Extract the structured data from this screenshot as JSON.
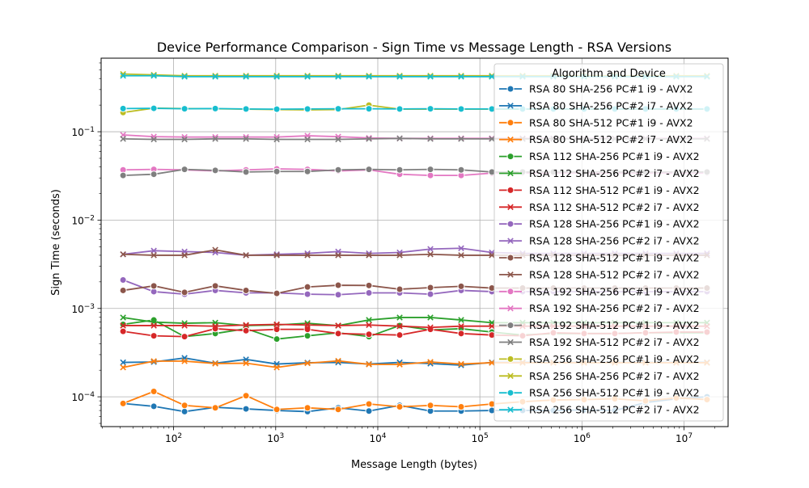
{
  "chart_data": {
    "type": "line",
    "title": "Device Performance Comparison - Sign Time vs Message Length - RSA Versions",
    "xlabel": "Message Length (bytes)",
    "ylabel": "Sign Time (seconds)",
    "xscale": "log",
    "yscale": "log",
    "xlim": [
      19.5,
      27000000
    ],
    "ylim": [
      4.6e-05,
      0.68
    ],
    "grid": true,
    "legend": {
      "title": "Algorithm and Device",
      "placement": "upper right"
    },
    "x_ticks": [
      {
        "value": 100,
        "base": "10",
        "exp": "2"
      },
      {
        "value": 1000,
        "base": "10",
        "exp": "3"
      },
      {
        "value": 10000,
        "base": "10",
        "exp": "4"
      },
      {
        "value": 100000,
        "base": "10",
        "exp": "5"
      },
      {
        "value": 1000000,
        "base": "10",
        "exp": "6"
      },
      {
        "value": 10000000,
        "base": "10",
        "exp": "7"
      }
    ],
    "y_ticks": [
      {
        "value": 0.0001,
        "base": "10",
        "exp": "−4"
      },
      {
        "value": 0.001,
        "base": "10",
        "exp": "−3"
      },
      {
        "value": 0.01,
        "base": "10",
        "exp": "−2"
      },
      {
        "value": 0.1,
        "base": "10",
        "exp": "−1"
      }
    ],
    "x": [
      32,
      64,
      128,
      256,
      512,
      1024,
      2048,
      4096,
      8192,
      16384,
      32768,
      65536,
      131072,
      262144,
      524288,
      1048576,
      2097152,
      4194304,
      8388608,
      16777216
    ],
    "series": [
      {
        "name": "RSA 80 SHA-256 PC#1 i9 - AVX2",
        "color": "#1f77b4",
        "marker": "circle",
        "values": [
          8.4e-05,
          7.8e-05,
          6.8e-05,
          7.6e-05,
          7.3e-05,
          7e-05,
          6.8e-05,
          7.5e-05,
          6.9e-05,
          8e-05,
          6.9e-05,
          6.9e-05,
          7e-05,
          7e-05,
          7e-05,
          7.1e-05,
          7e-05,
          8.6e-05,
          9.5e-05,
          0.0001
        ]
      },
      {
        "name": "RSA 80 SHA-256 PC#2 i7 - AVX2",
        "color": "#1f77b4",
        "marker": "x",
        "values": [
          0.000245,
          0.000248,
          0.000275,
          0.00024,
          0.000265,
          0.000235,
          0.000243,
          0.000245,
          0.000235,
          0.000245,
          0.000238,
          0.000228,
          0.000245,
          0.000245,
          0.000245,
          0.000245,
          0.000245,
          0.000245,
          0.000245,
          0.000245
        ]
      },
      {
        "name": "RSA 80 SHA-512 PC#1 i9 - AVX2",
        "color": "#ff7f0e",
        "marker": "circle",
        "values": [
          8.4e-05,
          0.000115,
          8e-05,
          7.5e-05,
          0.000103,
          7.2e-05,
          7.5e-05,
          7.2e-05,
          8.3e-05,
          7.7e-05,
          8e-05,
          7.7e-05,
          8.3e-05,
          8.8e-05,
          9.2e-05,
          9.3e-05,
          9.5e-05,
          9e-05,
          9.7e-05,
          9.3e-05
        ]
      },
      {
        "name": "RSA 80 SHA-512 PC#2 i7 - AVX2",
        "color": "#ff7f0e",
        "marker": "x",
        "values": [
          0.000215,
          0.000253,
          0.000253,
          0.000238,
          0.00024,
          0.000215,
          0.00024,
          0.000255,
          0.000233,
          0.000232,
          0.000248,
          0.000235,
          0.000243,
          0.000243,
          0.000243,
          0.000243,
          0.000243,
          0.000243,
          0.000243,
          0.000243
        ]
      },
      {
        "name": "RSA 112 SHA-256 PC#1 i9 - AVX2",
        "color": "#2ca02c",
        "marker": "circle",
        "values": [
          0.00066,
          0.00074,
          0.00048,
          0.00052,
          0.00059,
          0.00045,
          0.00049,
          0.00053,
          0.00048,
          0.00064,
          0.00057,
          0.00059,
          0.00054,
          0.0005,
          0.00052,
          0.00052,
          0.00052,
          0.00053,
          0.00053,
          0.00053
        ]
      },
      {
        "name": "RSA 112 SHA-256 PC#2 i7 - AVX2",
        "color": "#2ca02c",
        "marker": "x",
        "values": [
          0.00079,
          0.0007,
          0.00068,
          0.00069,
          0.00064,
          0.00065,
          0.00068,
          0.00064,
          0.00074,
          0.00079,
          0.00079,
          0.00074,
          0.00069,
          0.00069,
          0.00069,
          0.00069,
          0.00069,
          0.00069,
          0.00069,
          0.00069
        ]
      },
      {
        "name": "RSA 112 SHA-512 PC#1 i9 - AVX2",
        "color": "#d62728",
        "marker": "circle",
        "values": [
          0.00055,
          0.00049,
          0.00048,
          0.00059,
          0.00056,
          0.00058,
          0.00058,
          0.00052,
          0.00051,
          0.0005,
          0.00058,
          0.00052,
          0.0005,
          0.00049,
          0.00053,
          0.00052,
          0.00052,
          0.00053,
          0.00054,
          0.00054
        ]
      },
      {
        "name": "RSA 112 SHA-512 PC#2 i7 - AVX2",
        "color": "#d62728",
        "marker": "x",
        "values": [
          0.00064,
          0.00064,
          0.00064,
          0.00063,
          0.00065,
          0.00066,
          0.00065,
          0.00064,
          0.00065,
          0.00063,
          0.00061,
          0.00063,
          0.00063,
          0.00063,
          0.00063,
          0.00063,
          0.00063,
          0.00063,
          0.00063,
          0.00063
        ]
      },
      {
        "name": "RSA 128 SHA-256 PC#1 i9 - AVX2",
        "color": "#9467bd",
        "marker": "circle",
        "values": [
          0.0021,
          0.00155,
          0.00145,
          0.0016,
          0.0015,
          0.0015,
          0.00145,
          0.00143,
          0.0015,
          0.0015,
          0.00145,
          0.0016,
          0.00155,
          0.00155,
          0.00155,
          0.00155,
          0.00155,
          0.00155,
          0.00155,
          0.00155
        ]
      },
      {
        "name": "RSA 128 SHA-256 PC#2 i7 - AVX2",
        "color": "#9467bd",
        "marker": "x",
        "values": [
          0.0041,
          0.0045,
          0.0044,
          0.0043,
          0.004,
          0.0041,
          0.0042,
          0.0044,
          0.0042,
          0.0043,
          0.0047,
          0.0048,
          0.0043,
          0.0042,
          0.0042,
          0.0042,
          0.0042,
          0.0042,
          0.0042,
          0.0042
        ]
      },
      {
        "name": "RSA 128 SHA-512 PC#1 i9 - AVX2",
        "color": "#8c564b",
        "marker": "circle",
        "values": [
          0.0016,
          0.0018,
          0.00152,
          0.0018,
          0.0016,
          0.00148,
          0.00175,
          0.00183,
          0.00182,
          0.00165,
          0.00172,
          0.00178,
          0.0017,
          0.0017,
          0.0017,
          0.0017,
          0.0017,
          0.0017,
          0.0017,
          0.0017
        ]
      },
      {
        "name": "RSA 128 SHA-512 PC#2 i7 - AVX2",
        "color": "#8c564b",
        "marker": "x",
        "values": [
          0.0041,
          0.004,
          0.004,
          0.0046,
          0.004,
          0.004,
          0.004,
          0.004,
          0.004,
          0.004,
          0.0041,
          0.004,
          0.004,
          0.004,
          0.004,
          0.004,
          0.004,
          0.004,
          0.004,
          0.004
        ]
      },
      {
        "name": "RSA 192 SHA-256 PC#1 i9 - AVX2",
        "color": "#e377c2",
        "marker": "circle",
        "values": [
          0.037,
          0.0375,
          0.037,
          0.036,
          0.037,
          0.038,
          0.0375,
          0.036,
          0.037,
          0.033,
          0.032,
          0.032,
          0.034,
          0.034,
          0.034,
          0.034,
          0.034,
          0.034,
          0.034,
          0.034
        ]
      },
      {
        "name": "RSA 192 SHA-256 PC#2 i7 - AVX2",
        "color": "#e377c2",
        "marker": "x",
        "values": [
          0.092,
          0.088,
          0.087,
          0.087,
          0.087,
          0.087,
          0.09,
          0.088,
          0.085,
          0.084,
          0.084,
          0.084,
          0.084,
          0.084,
          0.084,
          0.084,
          0.084,
          0.084,
          0.084,
          0.084
        ]
      },
      {
        "name": "RSA 192 SHA-512 PC#1 i9 - AVX2",
        "color": "#7f7f7f",
        "marker": "circle",
        "values": [
          0.032,
          0.033,
          0.0375,
          0.0365,
          0.035,
          0.0355,
          0.0355,
          0.037,
          0.0375,
          0.037,
          0.0375,
          0.037,
          0.035,
          0.035,
          0.035,
          0.035,
          0.035,
          0.035,
          0.035,
          0.035
        ]
      },
      {
        "name": "RSA 192 SHA-512 PC#2 i7 - AVX2",
        "color": "#7f7f7f",
        "marker": "x",
        "values": [
          0.083,
          0.082,
          0.082,
          0.083,
          0.083,
          0.082,
          0.082,
          0.082,
          0.083,
          0.084,
          0.083,
          0.083,
          0.083,
          0.083,
          0.083,
          0.083,
          0.083,
          0.083,
          0.083,
          0.083
        ]
      },
      {
        "name": "RSA 256 SHA-256 PC#1 i9 - AVX2",
        "color": "#bcbd22",
        "marker": "circle",
        "values": [
          0.165,
          0.185,
          0.183,
          0.182,
          0.18,
          0.178,
          0.177,
          0.178,
          0.2,
          0.18,
          0.18,
          0.18,
          0.18,
          0.18,
          0.18,
          0.18,
          0.18,
          0.18,
          0.18,
          0.18
        ]
      },
      {
        "name": "RSA 256 SHA-256 PC#2 i7 - AVX2",
        "color": "#bcbd22",
        "marker": "x",
        "values": [
          0.45,
          0.44,
          0.43,
          0.43,
          0.43,
          0.43,
          0.43,
          0.43,
          0.43,
          0.43,
          0.43,
          0.43,
          0.43,
          0.43,
          0.43,
          0.43,
          0.43,
          0.43,
          0.43,
          0.43
        ]
      },
      {
        "name": "RSA 256 SHA-512 PC#1 i9 - AVX2",
        "color": "#17becf",
        "marker": "circle",
        "values": [
          0.183,
          0.184,
          0.182,
          0.183,
          0.181,
          0.18,
          0.181,
          0.182,
          0.182,
          0.181,
          0.182,
          0.181,
          0.181,
          0.181,
          0.181,
          0.181,
          0.181,
          0.181,
          0.181,
          0.181
        ]
      },
      {
        "name": "RSA 256 SHA-512 PC#2 i7 - AVX2",
        "color": "#17becf",
        "marker": "x",
        "values": [
          0.43,
          0.43,
          0.42,
          0.42,
          0.42,
          0.42,
          0.42,
          0.42,
          0.42,
          0.42,
          0.42,
          0.42,
          0.42,
          0.42,
          0.42,
          0.42,
          0.42,
          0.42,
          0.42,
          0.42
        ]
      }
    ]
  }
}
